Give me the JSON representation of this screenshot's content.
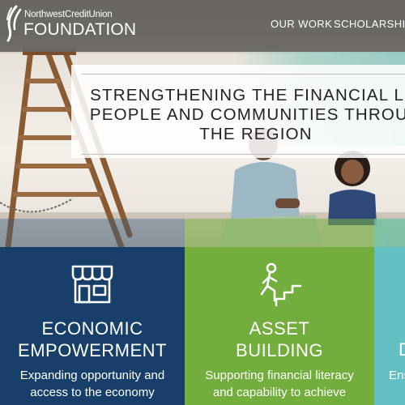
{
  "header": {
    "logo_line1": "NorthwestCreditUnion",
    "logo_line2": "FOUNDATION",
    "nav": [
      {
        "label": "OUR WORK"
      },
      {
        "label": "SCHOLARSHIPS"
      }
    ]
  },
  "hero": {
    "headline_lines": [
      "STRENGTHENING THE FINANCIAL LIV",
      "PEOPLE AND COMMUNITIES THROUG",
      "THE REGION"
    ]
  },
  "cards": [
    {
      "icon": "storefront-icon",
      "title_lines": [
        "ECONOMIC",
        "EMPOWERMENT"
      ],
      "desc_lines": [
        "Expanding opportunity and",
        "access to the economy"
      ],
      "color": "#173f6a"
    },
    {
      "icon": "person-climbing-stairs-icon",
      "title_lines": [
        "ASSET",
        "BUILDING"
      ],
      "desc_lines": [
        "Supporting financial literacy",
        "and capability to achieve"
      ],
      "color": "#72ad3d"
    },
    {
      "title_partial": "D",
      "desc_partial": "Ens",
      "color": "#62bfc2"
    }
  ]
}
